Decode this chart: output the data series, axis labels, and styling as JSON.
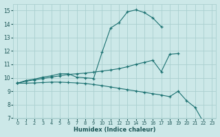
{
  "xlabel": "Humidex (Indice chaleur)",
  "xlim": [
    -0.5,
    23.5
  ],
  "ylim": [
    7,
    15.5
  ],
  "xtick_labels": [
    "0",
    "1",
    "2",
    "3",
    "4",
    "5",
    "6",
    "7",
    "8",
    "9",
    "10",
    "11",
    "12",
    "13",
    "14",
    "15",
    "16",
    "17",
    "18",
    "19",
    "20",
    "21",
    "22",
    "23"
  ],
  "xticks": [
    0,
    1,
    2,
    3,
    4,
    5,
    6,
    7,
    8,
    9,
    10,
    11,
    12,
    13,
    14,
    15,
    16,
    17,
    18,
    19,
    20,
    21,
    22,
    23
  ],
  "yticks": [
    7,
    8,
    9,
    10,
    11,
    12,
    13,
    14,
    15
  ],
  "bg_color": "#cce8e8",
  "grid_color": "#aad0d0",
  "line_color": "#1a7070",
  "series": [
    {
      "x": [
        0,
        1,
        2,
        3,
        4,
        5,
        6,
        7,
        8,
        9,
        10,
        11,
        12,
        13,
        14,
        15,
        16,
        17
      ],
      "y": [
        9.6,
        9.8,
        9.9,
        10.05,
        10.15,
        10.3,
        10.3,
        10.05,
        10.0,
        9.95,
        11.9,
        13.7,
        14.1,
        14.9,
        15.05,
        14.85,
        14.45,
        13.8
      ]
    },
    {
      "x": [
        0,
        1,
        2,
        3,
        4,
        5,
        6,
        7,
        8,
        9,
        10,
        11,
        12,
        13,
        14,
        15,
        16,
        17,
        18,
        19
      ],
      "y": [
        9.6,
        9.75,
        9.85,
        9.95,
        10.05,
        10.15,
        10.25,
        10.3,
        10.35,
        10.42,
        10.5,
        10.58,
        10.68,
        10.82,
        11.0,
        11.15,
        11.3,
        10.45,
        11.75,
        11.8
      ]
    },
    {
      "x": [
        0,
        1,
        2,
        3,
        4,
        5,
        6,
        7,
        8,
        9,
        10,
        11,
        12,
        13,
        14,
        15,
        16,
        17,
        18,
        19,
        20,
        21,
        22
      ],
      "y": [
        9.6,
        9.6,
        9.62,
        9.65,
        9.68,
        9.68,
        9.65,
        9.62,
        9.58,
        9.5,
        9.42,
        9.32,
        9.22,
        9.12,
        9.02,
        8.92,
        8.82,
        8.72,
        8.6,
        9.0,
        8.3,
        7.8,
        6.7
      ]
    }
  ]
}
